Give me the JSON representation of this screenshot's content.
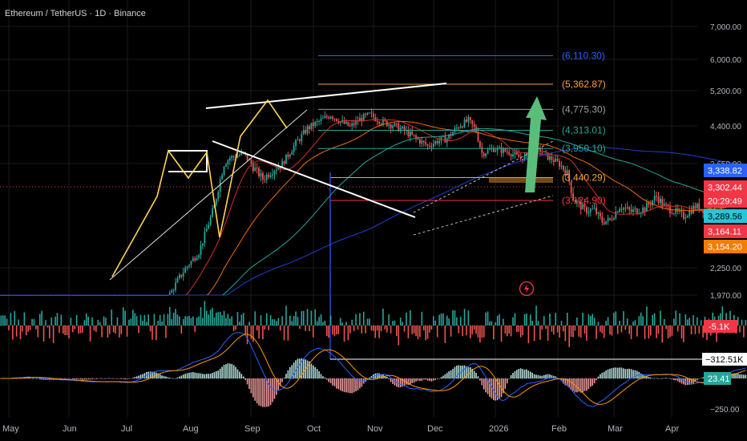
{
  "title": "Ethereum / TetherUS · 1D · Binance",
  "colors": {
    "background": "#000000",
    "axis_text": "#b2b5be",
    "grid": "#1a1a1a",
    "candle_up": "#26a69a",
    "candle_down": "#ef5350",
    "blue_level": "#2962ff",
    "orange_level": "#f7a33b",
    "white_level": "#9e9e9e",
    "teal_level": "#26a69a",
    "red_level": "#f23645",
    "trend_white": "#ffffff",
    "zigzag_yellow": "#ffd54f",
    "arrow_green": "#5bbd7a"
  },
  "chart_data": {
    "type": "candlestick",
    "symbol": "Ethereum / TetherUS",
    "interval": "1D",
    "exchange": "Binance",
    "price_axis_ticks": [
      "7,000.00",
      "6,000.00",
      "5,200.00",
      "4,400.00",
      "3,650.00",
      "2,250.00",
      "1,970.00"
    ],
    "time_axis_ticks": [
      "May",
      "Jun",
      "Jul",
      "Aug",
      "Sep",
      "Oct",
      "Nov",
      "Dec",
      "2026",
      "Feb",
      "Mar",
      "Apr"
    ],
    "horizontal_levels": [
      {
        "label": "(6,110.30)",
        "value": 6110.3,
        "color": "#2962ff"
      },
      {
        "label": "(5,362.87)",
        "value": 5362.87,
        "color": "#f7a33b"
      },
      {
        "label": "(4,775.30)",
        "value": 4775.3,
        "color": "#9e9e9e"
      },
      {
        "label": "(4,313.01)",
        "value": 4313.01,
        "color": "#26a69a"
      },
      {
        "label": "(3,950.10)",
        "value": 3950.1,
        "color": "#26a69a"
      },
      {
        "label": "(3,440.29)",
        "value": 3440.29,
        "color": "#f7a33b"
      },
      {
        "label": "(3,124.90)",
        "value": 3124.9,
        "color": "#f23645"
      }
    ],
    "price_badges": [
      {
        "text": "3,338.82",
        "bg": "#2962ff",
        "fg": "#ffffff"
      },
      {
        "text": "3,302.44",
        "bg": "#f23645",
        "fg": "#ffffff"
      },
      {
        "text": "20:29:49",
        "bg": "#f23645",
        "fg": "#ffffff"
      },
      {
        "text": "3,289.56",
        "bg": "#26c6da",
        "fg": "#000000"
      },
      {
        "text": "3,164.11",
        "bg": "#f23645",
        "fg": "#ffffff"
      },
      {
        "text": "3,154.20",
        "bg": "#f57c00",
        "fg": "#ffffff"
      }
    ],
    "volume_panel": {
      "axis_label": "-5.1K",
      "axis_label_bg": "#f23645",
      "extreme_label": "−312.51K"
    },
    "oscillator_panel": {
      "value": "23.41",
      "value_bg": "#26a69a",
      "axis_tick": "−250.00"
    },
    "last_price": 3302.44
  },
  "clock_icon": "lightning-clock-icon"
}
